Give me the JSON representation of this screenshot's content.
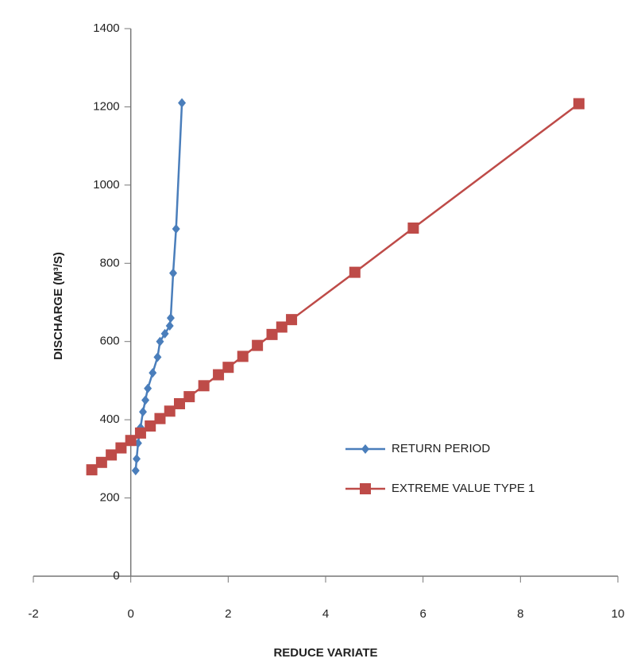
{
  "chart_data": {
    "type": "line",
    "xlabel": "REDUCE VARIATE",
    "ylabel": "DISCHARGE (M³/S)",
    "xlim": [
      -2,
      10
    ],
    "xticks": [
      -2,
      0,
      2,
      4,
      6,
      8,
      10
    ],
    "ylim": [
      0,
      1400
    ],
    "yticks": [
      0,
      200,
      400,
      600,
      800,
      1000,
      1200,
      1400
    ],
    "legend": "right",
    "series": [
      {
        "name": "RETURN PERIOD",
        "color": "#4a7ebb",
        "marker": "diamond",
        "x": [
          0.1,
          0.12,
          0.15,
          0.2,
          0.25,
          0.3,
          0.35,
          0.45,
          0.55,
          0.6,
          0.7,
          0.8,
          0.82,
          0.87,
          0.93,
          1.05
        ],
        "values": [
          270,
          300,
          340,
          380,
          420,
          450,
          480,
          520,
          560,
          600,
          620,
          640,
          660,
          775,
          888,
          1210
        ]
      },
      {
        "name": "EXTREME VALUE TYPE 1",
        "color": "#be4b48",
        "marker": "square",
        "x": [
          -0.8,
          -0.6,
          -0.4,
          -0.2,
          0,
          0.2,
          0.4,
          0.6,
          0.8,
          1,
          1.2,
          1.5,
          1.8,
          2,
          2.3,
          2.6,
          2.9,
          3.1,
          3.3,
          4.6,
          5.8,
          9.2
        ],
        "values": [
          272,
          291,
          310,
          328,
          347,
          366,
          384,
          403,
          422,
          441,
          459,
          487,
          515,
          534,
          562,
          590,
          618,
          637,
          656,
          777,
          890,
          1208
        ]
      }
    ]
  }
}
